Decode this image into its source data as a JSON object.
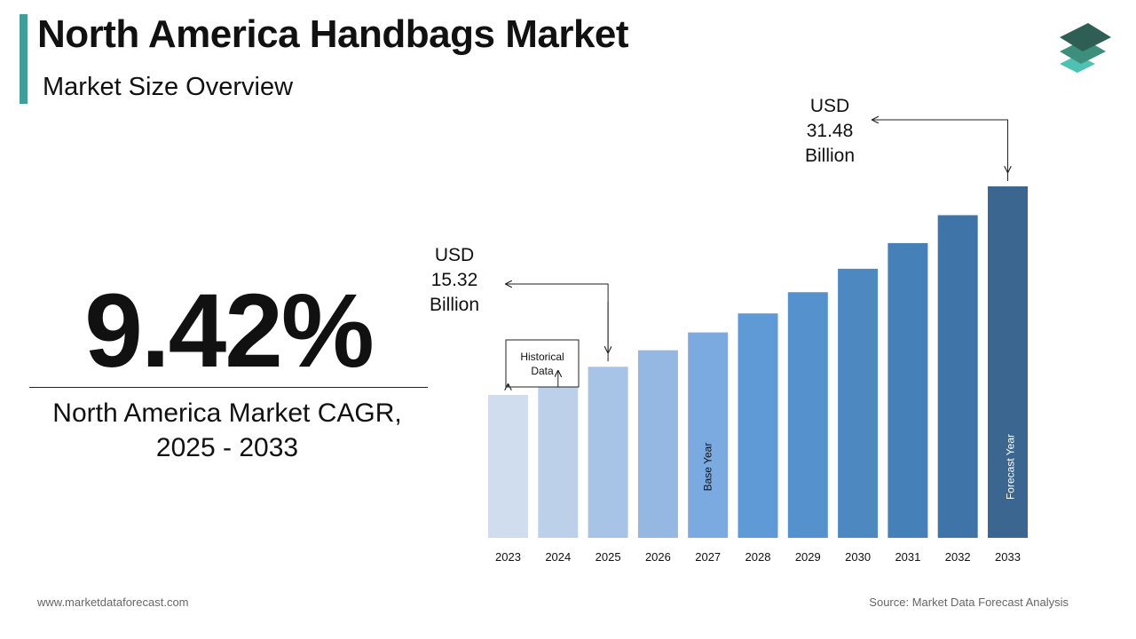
{
  "header": {
    "title": "North America Handbags Market",
    "subtitle": "Market Size Overview"
  },
  "logo": {
    "icon": "stacked-layers-icon",
    "colors": [
      "#2e5e54",
      "#3d8f7c",
      "#4fc1b3"
    ]
  },
  "cagr": {
    "value": "9.42%",
    "label_line1": "North America Market CAGR,",
    "label_line2": "2025 - 2033"
  },
  "footer": {
    "website": "www.marketdataforecast.com",
    "source": "Source: Market Data Forecast Analysis"
  },
  "chart_data": {
    "type": "bar",
    "categories": [
      "2023",
      "2024",
      "2025",
      "2026",
      "2027",
      "2028",
      "2029",
      "2030",
      "2031",
      "2032",
      "2033"
    ],
    "values": [
      12.8,
      14.0,
      15.32,
      16.8,
      18.4,
      20.1,
      22.0,
      24.1,
      26.4,
      28.9,
      31.48
    ],
    "colors": [
      "#d0ddee",
      "#bcd0ea",
      "#a7c3e6",
      "#94b8e2",
      "#7aaae0",
      "#5f9ad6",
      "#5592cd",
      "#4d88c1",
      "#4680b8",
      "#3f74a8",
      "#3a6690"
    ],
    "bar_labels": {
      "2027": "Base Year",
      "2033": "Forecast Year"
    },
    "callouts": [
      {
        "year": "2025",
        "line1": "USD",
        "line2": "15.32",
        "line3": "Billion"
      },
      {
        "year": "2033",
        "line1": "USD",
        "line2": "31.48",
        "line3": "Billion"
      }
    ],
    "historical_box": {
      "line1": "Historical",
      "line2": "Data",
      "years": [
        "2023",
        "2024"
      ]
    },
    "ylim": [
      0,
      35
    ],
    "grid": false,
    "title": "",
    "xlabel": "",
    "ylabel": ""
  }
}
